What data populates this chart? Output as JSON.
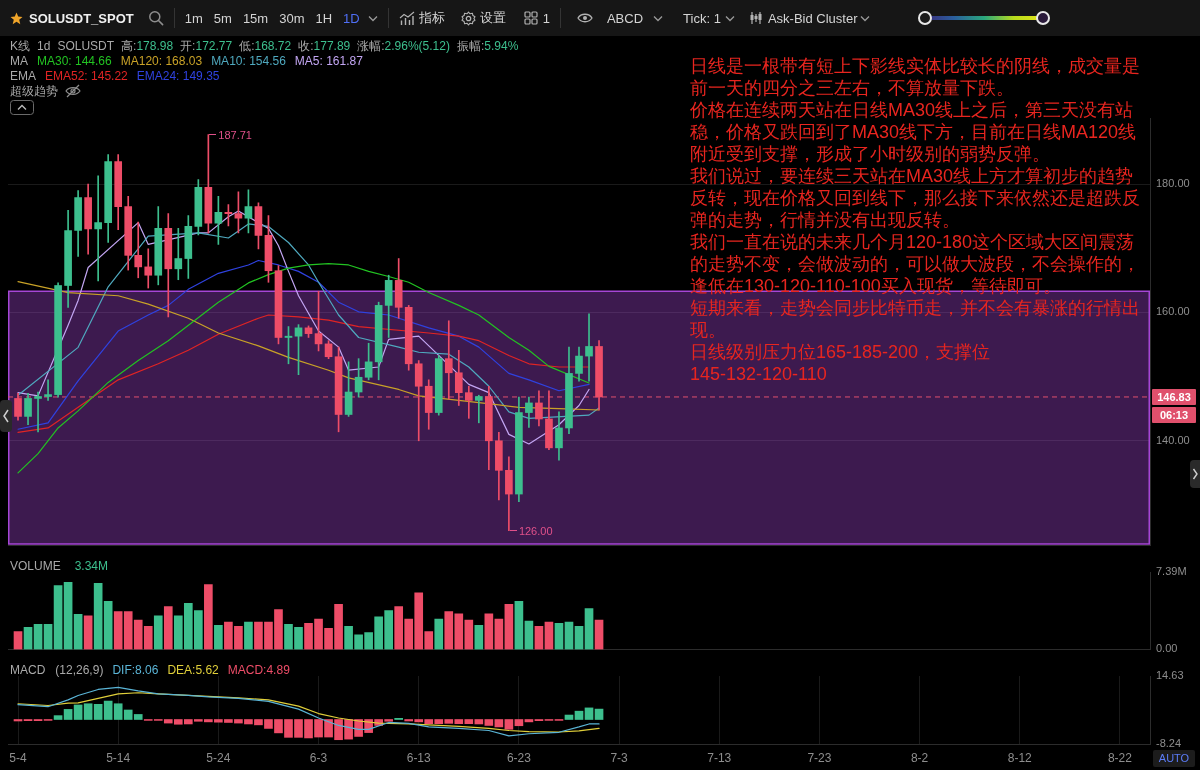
{
  "chart_data": [
    {
      "type": "other",
      "title": "SOLUSDT_SPOT",
      "annotations": [
        "1m",
        "5m",
        "15m",
        "30m",
        "1H",
        "1D",
        "指标",
        "设置",
        "1",
        "ABCD",
        "Tick: 1",
        "Ask-Bid Cluster"
      ]
    },
    {
      "type": "candlestick",
      "x": [
        "--05-04",
        "--05-05",
        "--05-06",
        "--05-07",
        "--05-08",
        "--05-09",
        "--05-10",
        "--05-11",
        "--05-12",
        "--05-13",
        "--05-14",
        "--05-15",
        "--05-16",
        "--05-17",
        "--05-18",
        "--05-19",
        "--05-20",
        "--05-21",
        "--05-22",
        "--05-23",
        "--05-24",
        "--05-25",
        "--05-26",
        "--05-27",
        "--05-28",
        "--05-29",
        "--05-30",
        "--05-31",
        "--06-01",
        "--06-02",
        "--06-03",
        "--06-04",
        "--06-05",
        "--06-06",
        "--06-07",
        "--06-08",
        "--06-09",
        "--06-10",
        "--06-11",
        "--06-12",
        "--06-13",
        "--06-14",
        "--06-15",
        "--06-16",
        "--06-17",
        "--06-18",
        "--06-19",
        "--06-20",
        "--06-21",
        "--06-22",
        "--06-23",
        "--06-24",
        "--06-25",
        "--06-26",
        "--06-27",
        "--06-28",
        "--06-29",
        "--06-30",
        "--07-01"
      ],
      "ohlc": [
        [
          146.6,
          147.4,
          143.2,
          143.8
        ],
        [
          143.8,
          147.4,
          142.5,
          146.6
        ],
        [
          146.6,
          147.6,
          141.4,
          146.9
        ],
        [
          146.9,
          149.5,
          146.3,
          147.2
        ],
        [
          147.2,
          164.6,
          146.8,
          164.2
        ],
        [
          164.2,
          175.9,
          160.8,
          172.77
        ],
        [
          172.77,
          178.98,
          168.72,
          177.89
        ],
        [
          177.89,
          180.0,
          169.1,
          173.0
        ],
        [
          173.0,
          181.3,
          164.9,
          174.0
        ],
        [
          174.0,
          184.6,
          170.9,
          183.5
        ],
        [
          183.5,
          184.6,
          172.9,
          176.5
        ],
        [
          176.5,
          178.1,
          166.6,
          168.9
        ],
        [
          168.9,
          174.1,
          165.4,
          167.1
        ],
        [
          167.1,
          169.9,
          163.8,
          165.8
        ],
        [
          165.8,
          176.5,
          164.3,
          173.1
        ],
        [
          173.1,
          175.4,
          159.3,
          166.8
        ],
        [
          166.8,
          173.1,
          165.1,
          168.4
        ],
        [
          168.4,
          175.1,
          165.3,
          173.4
        ],
        [
          173.4,
          180.7,
          172.1,
          179.5
        ],
        [
          179.5,
          187.71,
          172.4,
          173.9
        ],
        [
          173.9,
          178.1,
          170.6,
          175.6
        ],
        [
          175.6,
          176.8,
          173.5,
          175.4
        ],
        [
          175.4,
          178.8,
          172.4,
          174.7
        ],
        [
          174.7,
          179.1,
          172.4,
          176.5
        ],
        [
          176.5,
          177.1,
          169.9,
          172.0
        ],
        [
          172.0,
          175.1,
          164.7,
          166.5
        ],
        [
          166.5,
          167.3,
          155.1,
          156.1
        ],
        [
          156.1,
          157.8,
          152.0,
          156.3
        ],
        [
          156.3,
          158.1,
          150.3,
          157.6
        ],
        [
          157.6,
          157.9,
          156.1,
          156.7
        ],
        [
          156.7,
          163.3,
          154.0,
          155.1
        ],
        [
          155.1,
          155.6,
          152.8,
          153.1
        ],
        [
          153.1,
          154.6,
          141.4,
          144.1
        ],
        [
          144.1,
          152.3,
          143.8,
          147.6
        ],
        [
          147.6,
          152.8,
          146.8,
          149.9
        ],
        [
          149.9,
          155.2,
          149.5,
          152.3
        ],
        [
          152.3,
          161.6,
          149.5,
          161.1
        ],
        [
          161.1,
          165.8,
          156.1,
          165.0
        ],
        [
          165.0,
          168.4,
          159.1,
          160.8
        ],
        [
          160.8,
          161.1,
          151.0,
          152.0
        ],
        [
          152.0,
          152.5,
          140.0,
          148.5
        ],
        [
          148.5,
          149.5,
          141.8,
          144.4
        ],
        [
          144.4,
          153.3,
          144.0,
          152.8
        ],
        [
          152.8,
          158.7,
          146.5,
          150.6
        ],
        [
          150.6,
          154.1,
          145.5,
          147.5
        ],
        [
          147.5,
          148.5,
          143.5,
          146.3
        ],
        [
          146.3,
          147.1,
          142.8,
          146.9
        ],
        [
          146.9,
          148.5,
          135.5,
          140.0
        ],
        [
          140.0,
          141.3,
          130.8,
          135.4
        ],
        [
          135.4,
          137.5,
          126.0,
          131.7
        ],
        [
          131.7,
          146.8,
          130.5,
          144.4
        ],
        [
          144.4,
          146.8,
          142.1,
          145.9
        ],
        [
          145.9,
          147.8,
          142.3,
          143.4
        ],
        [
          143.4,
          147.8,
          138.6,
          138.9
        ],
        [
          138.9,
          144.5,
          137.0,
          142.0
        ],
        [
          142.0,
          154.6,
          141.1,
          150.5
        ],
        [
          150.5,
          154.6,
          149.3,
          153.2
        ],
        [
          153.2,
          159.8,
          149.3,
          154.7
        ],
        [
          154.7,
          155.6,
          144.8,
          146.83
        ]
      ],
      "colors": [
        "#ee4d68",
        "#3dbf8e",
        "#3dbf8e",
        "#3dbf8e",
        "#3dbf8e",
        "#3dbf8e",
        "#3dbf8e",
        "#ee4d68",
        "#3dbf8e",
        "#3dbf8e",
        "#ee4d68",
        "#ee4d68",
        "#ee4d68",
        "#ee4d68",
        "#3dbf8e",
        "#ee4d68",
        "#3dbf8e",
        "#3dbf8e",
        "#3dbf8e",
        "#ee4d68",
        "#3dbf8e",
        "#ee4d68",
        "#ee4d68",
        "#3dbf8e",
        "#ee4d68",
        "#ee4d68",
        "#ee4d68",
        "#3dbf8e",
        "#3dbf8e",
        "#ee4d68",
        "#ee4d68",
        "#ee4d68",
        "#ee4d68",
        "#3dbf8e",
        "#3dbf8e",
        "#3dbf8e",
        "#3dbf8e",
        "#3dbf8e",
        "#ee4d68",
        "#ee4d68",
        "#ee4d68",
        "#ee4d68",
        "#3dbf8e",
        "#ee4d68",
        "#ee4d68",
        "#ee4d68",
        "#3dbf8e",
        "#ee4d68",
        "#ee4d68",
        "#ee4d68",
        "#3dbf8e",
        "#3dbf8e",
        "#ee4d68",
        "#ee4d68",
        "#3dbf8e",
        "#3dbf8e",
        "#3dbf8e",
        "#3dbf8e",
        "#ee4d68"
      ],
      "series": [
        {
          "name": "MA30: 144.66",
          "type": "line",
          "color": "#22c322",
          "x": [
            "--05-04",
            "--05-06",
            "--05-08",
            "--05-10",
            "--05-13",
            "--05-16",
            "--05-19",
            "--05-24",
            "--05-27",
            "--05-29",
            "--05-31",
            "--06-02",
            "--06-04",
            "--06-06",
            "--06-08",
            "--06-10",
            "--06-12",
            "--06-14",
            "--06-17",
            "--06-19",
            "--06-22",
            "--06-24",
            "--06-26",
            "--06-30"
          ],
          "values": [
            135.0,
            138.0,
            142.0,
            144.66,
            149.1,
            152.5,
            155.6,
            161.6,
            164.6,
            165.9,
            166.9,
            167.4,
            167.6,
            167.4,
            166.4,
            165.6,
            164.7,
            163.1,
            161.1,
            159.6,
            156.1,
            154.1,
            151.6,
            149.0
          ]
        },
        {
          "name": "MA120: 168.03",
          "type": "line",
          "color": "#c9a227",
          "x": [
            "--05-04",
            "--05-09",
            "--05-14",
            "--05-17",
            "--05-21",
            "--05-24",
            "--05-28",
            "--05-31",
            "--06-04",
            "--06-06",
            "--06-11",
            "--06-13",
            "--06-21",
            "--06-23",
            "--06-27",
            "--07-01"
          ],
          "values": [
            164.8,
            163.1,
            162.6,
            161.3,
            159.1,
            156.8,
            154.8,
            153.0,
            151.0,
            149.8,
            148.0,
            147.0,
            145.6,
            145.2,
            145.0,
            144.8
          ]
        },
        {
          "name": "MA10: 154.56",
          "type": "line",
          "color": "#4fa9bf",
          "x": [
            "--05-04",
            "--05-10",
            "--05-13",
            "--05-17",
            "--05-22",
            "--05-25",
            "--05-27",
            "--05-29",
            "--05-31",
            "--06-02",
            "--06-03",
            "--06-05",
            "--06-07",
            "--06-11",
            "--06-13",
            "--06-16",
            "--06-18",
            "--06-20",
            "--06-22",
            "--06-24",
            "--06-30",
            "--07-01"
          ],
          "values": [
            147.1,
            154.56,
            164.0,
            171.9,
            172.4,
            171.6,
            173.8,
            173.4,
            170.9,
            167.4,
            164.7,
            159.6,
            156.1,
            154.6,
            153.8,
            153.5,
            151.5,
            148.5,
            144.5,
            143.5,
            144.0,
            145.1
          ]
        },
        {
          "name": "MA5: 161.87",
          "type": "line",
          "color": "#c3a6f3",
          "x": [
            "--05-04",
            "--05-06",
            "--05-09",
            "--05-10",
            "--05-11",
            "--05-16",
            "--05-17",
            "--05-22",
            "--05-23",
            "--05-25",
            "--05-26",
            "--05-29",
            "--05-30",
            "--05-31",
            "--06-01",
            "--06-03",
            "--06-05",
            "--06-06",
            "--06-09",
            "--06-10",
            "--06-13",
            "--06-18",
            "--06-20",
            "--06-22",
            "--06-24",
            "--06-27",
            "--06-29",
            "--06-30"
          ],
          "values": [
            147.5,
            147.0,
            158.0,
            161.87,
            167.0,
            174.0,
            170.6,
            172.4,
            172.4,
            174.9,
            175.8,
            173.1,
            170.4,
            166.4,
            162.6,
            157.1,
            154.6,
            151.0,
            151.5,
            155.8,
            156.3,
            148.8,
            147.5,
            141.0,
            139.5,
            142.5,
            145.5,
            148.0
          ]
        },
        {
          "name": "EMA52: 145.22",
          "type": "line",
          "color": "#e02424",
          "x": [
            "--05-04",
            "--05-07",
            "--05-10",
            "--05-14",
            "--05-18",
            "--05-21",
            "--05-24",
            "--05-28",
            "--05-29",
            "--06-01",
            "--06-04",
            "--06-07",
            "--06-14",
            "--06-17",
            "--06-19",
            "--06-22",
            "--06-24",
            "--06-27",
            "--06-30"
          ],
          "values": [
            141.3,
            142.0,
            145.22,
            149.5,
            152.0,
            154.1,
            156.6,
            159.1,
            159.6,
            159.3,
            158.8,
            157.8,
            156.8,
            156.3,
            155.6,
            153.3,
            152.0,
            151.5,
            151.5
          ]
        },
        {
          "name": "EMA24: 149.35",
          "type": "line",
          "color": "#2f42e0",
          "x": [
            "--05-04",
            "--05-07",
            "--05-10",
            "--05-14",
            "--05-17",
            "--05-19",
            "--05-21",
            "--05-24",
            "--05-27",
            "--05-28",
            "--05-30",
            "--06-01",
            "--06-03",
            "--06-05",
            "--06-07",
            "--06-10",
            "--06-14",
            "--06-17",
            "--06-19",
            "--06-22",
            "--06-24",
            "--06-27",
            "--06-30"
          ],
          "values": [
            141.8,
            142.8,
            149.35,
            157.1,
            159.6,
            161.1,
            163.6,
            166.1,
            167.4,
            168.1,
            167.4,
            166.4,
            164.7,
            161.6,
            160.1,
            159.6,
            157.6,
            156.3,
            154.6,
            150.5,
            149.5,
            147.8,
            148.8
          ]
        }
      ],
      "xlim": [
        "--05-03",
        "--08-25"
      ],
      "xticks": [
        {
          "value": "--05-04",
          "label": null
        },
        {
          "value": "--05-14",
          "label": null
        },
        {
          "value": "--05-24",
          "label": null
        },
        {
          "value": "--06-03",
          "label": null
        },
        {
          "value": "--06-13",
          "label": null
        },
        {
          "value": "--06-23",
          "label": null
        },
        {
          "value": "--07-03",
          "label": null
        },
        {
          "value": "--07-13",
          "label": null
        },
        {
          "value": "--07-23",
          "label": null
        },
        {
          "value": "--08-02",
          "label": null
        },
        {
          "value": "--08-12",
          "label": null
        },
        {
          "value": "--08-22",
          "label": null
        }
      ],
      "ylim": [
        123.7,
        190.3
      ],
      "yticks": [
        {
          "value": 140,
          "label": "140.00"
        },
        {
          "value": 160,
          "label": "160.00"
        },
        {
          "value": 180,
          "label": "180.00"
        }
      ],
      "grid": true,
      "tick_labels": "y",
      "legend": "top left",
      "bands": [
        {
          "axis": "y",
          "from": 123.9,
          "to": 163.3,
          "color": "#a646d6"
        }
      ],
      "ref_lines": [
        {
          "axis": "y",
          "value": 146.83,
          "label": "146.83",
          "color": "#e0506c",
          "line_style": "dashed"
        }
      ],
      "annotations": [
        "K线 1d SOLUSDT 高:178.98 开:172.77 低:168.72 收:177.89 涨幅:2.96%(5.12) 振幅:5.94%",
        "MA",
        "EMA",
        "超级趋势",
        "日线是一根带有短上下影线实体比较长的阴线，成交量是前一天的四分之三左右，不算放量下跌。",
        "价格在连续两天站在日线MA30线上之后，第三天没有站稳，价格又跌回到了MA30线下方，目前在日线MA120线附近受到支撑，形成了小时级别的弱势反弹。",
        "我们说过，要连续三天站在MA30线上方才算初步的趋势反转，现在价格又回到线下，那么接下来依然还是超跌反弹的走势，行情并没有出现反转。",
        "我们一直在说的未来几个月120-180这个区域大区间震荡的走势不变，会做波动的，可以做大波段，不会操作的，逢低在130-120-110-100买入现货，等待即可。",
        "短期来看，走势会同步比特币走，并不会有暴涨的行情出现。",
        "日线级别压力位165-185-200，支撑位",
        "145-132-120-110",
        "06:13",
        {
          "text": "187.71",
          "x": "--05-23",
          "y": 187.71
        },
        {
          "text": "126.00",
          "x": "--06-22",
          "y": 126
        }
      ]
    },
    {
      "type": "bar",
      "x": [
        "--05-04",
        "--05-05",
        "--05-06",
        "--05-07",
        "--05-08",
        "--05-09",
        "--05-10",
        "--05-11",
        "--05-12",
        "--05-13",
        "--05-14",
        "--05-15",
        "--05-16",
        "--05-17",
        "--05-18",
        "--05-19",
        "--05-20",
        "--05-21",
        "--05-22",
        "--05-23",
        "--05-24",
        "--05-25",
        "--05-26",
        "--05-27",
        "--05-28",
        "--05-29",
        "--05-30",
        "--05-31",
        "--06-01",
        "--06-02",
        "--06-03",
        "--06-04",
        "--06-05",
        "--06-06",
        "--06-07",
        "--06-08",
        "--06-09",
        "--06-10",
        "--06-11",
        "--06-12",
        "--06-13",
        "--06-14",
        "--06-15",
        "--06-16",
        "--06-17",
        "--06-18",
        "--06-19",
        "--06-20",
        "--06-21",
        "--06-22",
        "--06-23",
        "--06-24",
        "--06-25",
        "--06-26",
        "--06-27",
        "--06-28",
        "--06-29",
        "--06-30",
        "--07-01"
      ],
      "values": [
        1.7,
        2.1,
        2.4,
        2.4,
        6.1,
        6.4,
        3.34,
        3.2,
        6.3,
        4.6,
        3.6,
        3.6,
        2.8,
        2.2,
        3.2,
        4.1,
        3.2,
        4.4,
        3.7,
        6.2,
        2.3,
        2.6,
        2.2,
        2.6,
        2.6,
        2.6,
        3.8,
        2.4,
        2.1,
        2.5,
        2.9,
        2.0,
        4.3,
        2.2,
        1.4,
        1.6,
        3.1,
        3.7,
        4.1,
        2.9,
        5.4,
        1.7,
        2.9,
        3.6,
        3.4,
        2.8,
        2.3,
        3.4,
        2.9,
        4.3,
        4.6,
        2.7,
        2.2,
        2.6,
        2.5,
        2.6,
        2.2,
        3.9,
        2.8
      ],
      "colors": [
        "#ee4d68",
        "#3dbf8e",
        "#3dbf8e",
        "#3dbf8e",
        "#3dbf8e",
        "#3dbf8e",
        "#3dbf8e",
        "#ee4d68",
        "#3dbf8e",
        "#3dbf8e",
        "#ee4d68",
        "#ee4d68",
        "#ee4d68",
        "#ee4d68",
        "#3dbf8e",
        "#ee4d68",
        "#3dbf8e",
        "#3dbf8e",
        "#3dbf8e",
        "#ee4d68",
        "#3dbf8e",
        "#ee4d68",
        "#ee4d68",
        "#3dbf8e",
        "#ee4d68",
        "#ee4d68",
        "#ee4d68",
        "#3dbf8e",
        "#3dbf8e",
        "#ee4d68",
        "#ee4d68",
        "#ee4d68",
        "#ee4d68",
        "#3dbf8e",
        "#3dbf8e",
        "#3dbf8e",
        "#3dbf8e",
        "#3dbf8e",
        "#ee4d68",
        "#ee4d68",
        "#ee4d68",
        "#ee4d68",
        "#3dbf8e",
        "#ee4d68",
        "#ee4d68",
        "#ee4d68",
        "#3dbf8e",
        "#ee4d68",
        "#ee4d68",
        "#ee4d68",
        "#3dbf8e",
        "#3dbf8e",
        "#ee4d68",
        "#ee4d68",
        "#3dbf8e",
        "#3dbf8e",
        "#3dbf8e",
        "#3dbf8e",
        "#ee4d68"
      ],
      "xlim": [
        "--05-03",
        "--08-25"
      ],
      "xticks": [
        {
          "value": "--05-04",
          "label": null
        },
        {
          "value": "--05-14",
          "label": null
        },
        {
          "value": "--05-24",
          "label": null
        },
        {
          "value": "--06-03",
          "label": null
        },
        {
          "value": "--06-13",
          "label": null
        },
        {
          "value": "--06-23",
          "label": null
        },
        {
          "value": "--07-03",
          "label": null
        },
        {
          "value": "--07-13",
          "label": null
        },
        {
          "value": "--07-23",
          "label": null
        },
        {
          "value": "--08-02",
          "label": null
        },
        {
          "value": "--08-12",
          "label": null
        },
        {
          "value": "--08-22",
          "label": null
        }
      ],
      "ylim": [
        0,
        7.39
      ],
      "yticks": [
        {
          "value": 0,
          "label": "0.00"
        },
        {
          "value": 7.39,
          "label": "7.39M"
        }
      ],
      "grid": "x",
      "tick_labels": "y",
      "annotations": [
        "VOLUME",
        "3.34M"
      ]
    },
    {
      "type": "bar",
      "x": [
        "--05-04",
        "--05-05",
        "--05-06",
        "--05-07",
        "--05-08",
        "--05-09",
        "--05-10",
        "--05-11",
        "--05-12",
        "--05-13",
        "--05-14",
        "--05-15",
        "--05-16",
        "--05-17",
        "--05-18",
        "--05-19",
        "--05-20",
        "--05-21",
        "--05-22",
        "--05-23",
        "--05-24",
        "--05-25",
        "--05-26",
        "--05-27",
        "--05-28",
        "--05-29",
        "--05-30",
        "--05-31",
        "--06-01",
        "--06-02",
        "--06-03",
        "--06-04",
        "--06-05",
        "--06-06",
        "--06-07",
        "--06-08",
        "--06-09",
        "--06-10",
        "--06-11",
        "--06-12",
        "--06-13",
        "--06-14",
        "--06-15",
        "--06-16",
        "--06-17",
        "--06-18",
        "--06-19",
        "--06-20",
        "--06-21",
        "--06-22",
        "--06-23",
        "--06-24",
        "--06-25",
        "--06-26",
        "--06-27",
        "--06-28",
        "--06-29",
        "--06-30",
        "--07-01"
      ],
      "series": [
        {
          "name": "DIF:8.06",
          "type": "line",
          "color": "#5ab4d6",
          "x": [
            "--05-04",
            "--05-07",
            "--05-09",
            "--05-10",
            "--05-12",
            "--05-14",
            "--05-16",
            "--05-18",
            "--05-21",
            "--05-23",
            "--05-26",
            "--05-29",
            "--06-01",
            "--06-03",
            "--06-05",
            "--06-07",
            "--06-08",
            "--06-10",
            "--06-12",
            "--06-14",
            "--06-17",
            "--06-20",
            "--06-22",
            "--06-24",
            "--06-27",
            "--06-29",
            "--06-30",
            "--07-01"
          ],
          "values": [
            5.0,
            4.3,
            6.6,
            8.06,
            10.1,
            10.8,
            9.6,
            8.6,
            8.1,
            7.6,
            7.1,
            6.1,
            3.5,
            0.5,
            -2.0,
            -3.3,
            -3.3,
            -1.0,
            -1.3,
            -2.5,
            -3.0,
            -3.7,
            -5.5,
            -4.8,
            -4.3,
            -2.5,
            -1.5,
            -1.5
          ]
        },
        {
          "name": "DEA:5.62",
          "type": "line",
          "color": "#e0cf3a",
          "x": [
            "--05-04",
            "--05-07",
            "--05-09",
            "--05-10",
            "--05-12",
            "--05-14",
            "--05-16",
            "--05-18",
            "--05-21",
            "--05-26",
            "--05-29",
            "--06-01",
            "--06-03",
            "--06-05",
            "--06-07",
            "--06-09",
            "--06-12",
            "--06-14",
            "--06-17",
            "--06-20",
            "--06-22",
            "--06-24",
            "--06-27",
            "--06-29",
            "--07-01"
          ],
          "values": [
            5.3,
            4.7,
            5.5,
            5.62,
            7.1,
            8.6,
            9.0,
            8.6,
            8.1,
            7.3,
            6.6,
            4.5,
            2.0,
            0.5,
            -0.5,
            -1.2,
            -1.5,
            -1.8,
            -2.3,
            -3.0,
            -3.7,
            -4.1,
            -4.2,
            -3.8,
            -3.0
          ]
        },
        {
          "name": "MACD:4.89",
          "type": "bar",
          "color": "#ee4d68",
          "colors": [
            "#ee4d68",
            "#ee4d68",
            "#ee4d68",
            "#ee4d68",
            "#3dbf8e",
            "#3dbf8e",
            "#3dbf8e",
            "#3dbf8e",
            "#3dbf8e",
            "#3dbf8e",
            "#3dbf8e",
            "#3dbf8e",
            "#3dbf8e",
            "#ee4d68",
            "#ee4d68",
            "#ee4d68",
            "#ee4d68",
            "#ee4d68",
            "#ee4d68",
            "#ee4d68",
            "#ee4d68",
            "#ee4d68",
            "#ee4d68",
            "#ee4d68",
            "#ee4d68",
            "#ee4d68",
            "#ee4d68",
            "#ee4d68",
            "#ee4d68",
            "#ee4d68",
            "#ee4d68",
            "#ee4d68",
            "#ee4d68",
            "#ee4d68",
            "#ee4d68",
            "#ee4d68",
            "#ee4d68",
            "#ee4d68",
            "#3dbf8e",
            "#ee4d68",
            "#ee4d68",
            "#ee4d68",
            "#ee4d68",
            "#ee4d68",
            "#ee4d68",
            "#ee4d68",
            "#ee4d68",
            "#ee4d68",
            "#ee4d68",
            "#ee4d68",
            "#ee4d68",
            "#ee4d68",
            "#ee4d68",
            "#ee4d68",
            "#ee4d68",
            "#3dbf8e",
            "#3dbf8e",
            "#3dbf8e",
            "#3dbf8e"
          ],
          "values": [
            -0.5,
            -0.4,
            -0.4,
            -0.3,
            1.3,
            3.4,
            4.89,
            5.3,
            5.1,
            6.2,
            5.3,
            3.2,
            1.7,
            -0.3,
            -0.3,
            -1.2,
            -1.6,
            -1.5,
            -0.6,
            -0.8,
            -0.9,
            -1.0,
            -1.2,
            -1.5,
            -1.8,
            -3.0,
            -4.5,
            -6.0,
            -6.0,
            -6.2,
            -5.9,
            -5.9,
            -6.8,
            -6.6,
            -5.7,
            -4.4,
            -2.0,
            -0.6,
            0.4,
            -0.5,
            -0.8,
            -1.4,
            -1.4,
            -1.3,
            -1.4,
            -1.4,
            -1.5,
            -2.0,
            -2.5,
            -3.3,
            -2.1,
            -0.8,
            -0.4,
            -0.3,
            -0.3,
            1.5,
            2.8,
            3.9,
            3.5
          ]
        }
      ],
      "xlim": [
        "--05-03",
        "--08-25"
      ],
      "xticks": [
        {
          "value": "--05-04",
          "label": "5-4"
        },
        {
          "value": "--05-14",
          "label": "5-14"
        },
        {
          "value": "--05-24",
          "label": "5-24"
        },
        {
          "value": "--06-03",
          "label": "6-3"
        },
        {
          "value": "--06-13",
          "label": "6-13"
        },
        {
          "value": "--06-23",
          "label": "6-23"
        },
        {
          "value": "--07-03",
          "label": "7-3"
        },
        {
          "value": "--07-13",
          "label": "7-13"
        },
        {
          "value": "--07-23",
          "label": "7-23"
        },
        {
          "value": "--08-02",
          "label": "8-2"
        },
        {
          "value": "--08-12",
          "label": "8-12"
        },
        {
          "value": "--08-22",
          "label": "8-22"
        }
      ],
      "ylim": [
        -8.24,
        14.63
      ],
      "yticks": [
        14.63,
        -8.24
      ],
      "grid": "x",
      "legend": "top left",
      "annotations": [
        "MACD",
        "(12,26,9)",
        "AUTO"
      ]
    }
  ]
}
